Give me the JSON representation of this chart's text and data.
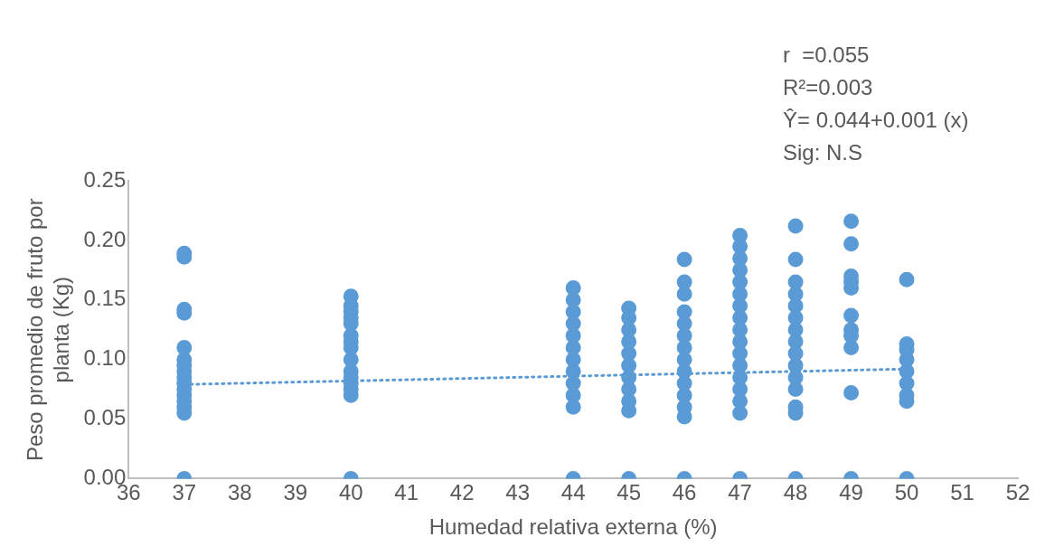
{
  "chart_data": {
    "type": "scatter",
    "xlabel": "Humedad relativa externa (%)",
    "ylabel": "Peso promedio de fruto por planta (Kg)",
    "annotations": [
      "r  =0.055",
      "R²=0.003",
      "Ŷ= 0.044+0.001 (x)",
      "Sig: N.S"
    ],
    "xlim": [
      36,
      52
    ],
    "xticks": [
      36,
      37,
      38,
      39,
      40,
      41,
      42,
      43,
      44,
      45,
      46,
      47,
      48,
      49,
      50,
      51,
      52
    ],
    "ylim": [
      0,
      0.25
    ],
    "yticks": [
      {
        "value": 0,
        "label": "0.00"
      },
      0.05,
      {
        "value": 0.1,
        "label": "0.10"
      },
      0.15,
      {
        "value": 0.2,
        "label": "0.20"
      },
      0.25
    ],
    "grid": false,
    "legend": false,
    "marker": "circle",
    "series": [
      {
        "color": "#5b9bd5",
        "x": [
          37,
          37,
          37,
          37,
          37,
          37,
          37,
          37,
          37,
          37,
          37,
          37,
          37,
          37,
          37,
          37,
          40,
          40,
          40,
          40,
          40,
          40,
          40,
          40,
          40,
          40,
          40,
          40,
          40,
          40,
          40,
          44,
          44,
          44,
          44,
          44,
          44,
          44,
          44,
          44,
          44,
          44,
          44,
          45,
          45,
          45,
          45,
          45,
          45,
          45,
          45,
          45,
          45,
          45,
          46,
          46,
          46,
          46,
          46,
          46,
          46,
          46,
          46,
          46,
          46,
          46,
          46,
          46,
          47,
          47,
          47,
          47,
          47,
          47,
          47,
          47,
          47,
          47,
          47,
          47,
          47,
          47,
          47,
          47,
          47,
          48,
          48,
          48,
          48,
          48,
          48,
          48,
          48,
          48,
          48,
          48,
          48,
          48,
          48,
          48,
          49,
          49,
          49,
          49,
          49,
          49,
          49,
          49,
          49,
          49,
          49,
          50,
          50,
          50,
          50,
          50,
          50,
          50,
          50,
          50
        ],
        "values": [
          0.189,
          0.186,
          0.142,
          0.139,
          0.11,
          0.1,
          0.095,
          0.09,
          0.085,
          0.08,
          0.075,
          0.07,
          0.065,
          0.06,
          0.055,
          0,
          0.153,
          0.145,
          0.14,
          0.135,
          0.13,
          0.12,
          0.115,
          0.11,
          0.1,
          0.09,
          0.085,
          0.08,
          0.075,
          0.07,
          0,
          0.16,
          0.15,
          0.14,
          0.13,
          0.12,
          0.11,
          0.1,
          0.09,
          0.08,
          0.07,
          0.06,
          0,
          0.143,
          0.135,
          0.125,
          0.115,
          0.105,
          0.095,
          0.085,
          0.075,
          0.065,
          0.057,
          0,
          0.184,
          0.165,
          0.155,
          0.14,
          0.13,
          0.12,
          0.11,
          0.1,
          0.09,
          0.08,
          0.07,
          0.06,
          0.052,
          0,
          0.204,
          0.195,
          0.185,
          0.175,
          0.165,
          0.155,
          0.145,
          0.135,
          0.125,
          0.115,
          0.105,
          0.095,
          0.085,
          0.075,
          0.065,
          0.055,
          0,
          0.212,
          0.184,
          0.165,
          0.155,
          0.145,
          0.135,
          0.125,
          0.115,
          0.105,
          0.095,
          0.085,
          0.075,
          0.06,
          0.055,
          0,
          0.216,
          0.197,
          0.17,
          0.165,
          0.16,
          0.137,
          0.125,
          0.12,
          0.11,
          0.072,
          0,
          0.167,
          0.113,
          0.108,
          0.1,
          0.09,
          0.08,
          0.07,
          0.065,
          0
        ]
      },
      {
        "type": "line",
        "color": "#5b9bd5",
        "marker": "none",
        "line_style": "dotted",
        "x": [
          37,
          50
        ],
        "values": [
          0.079,
          0.092
        ]
      }
    ]
  }
}
